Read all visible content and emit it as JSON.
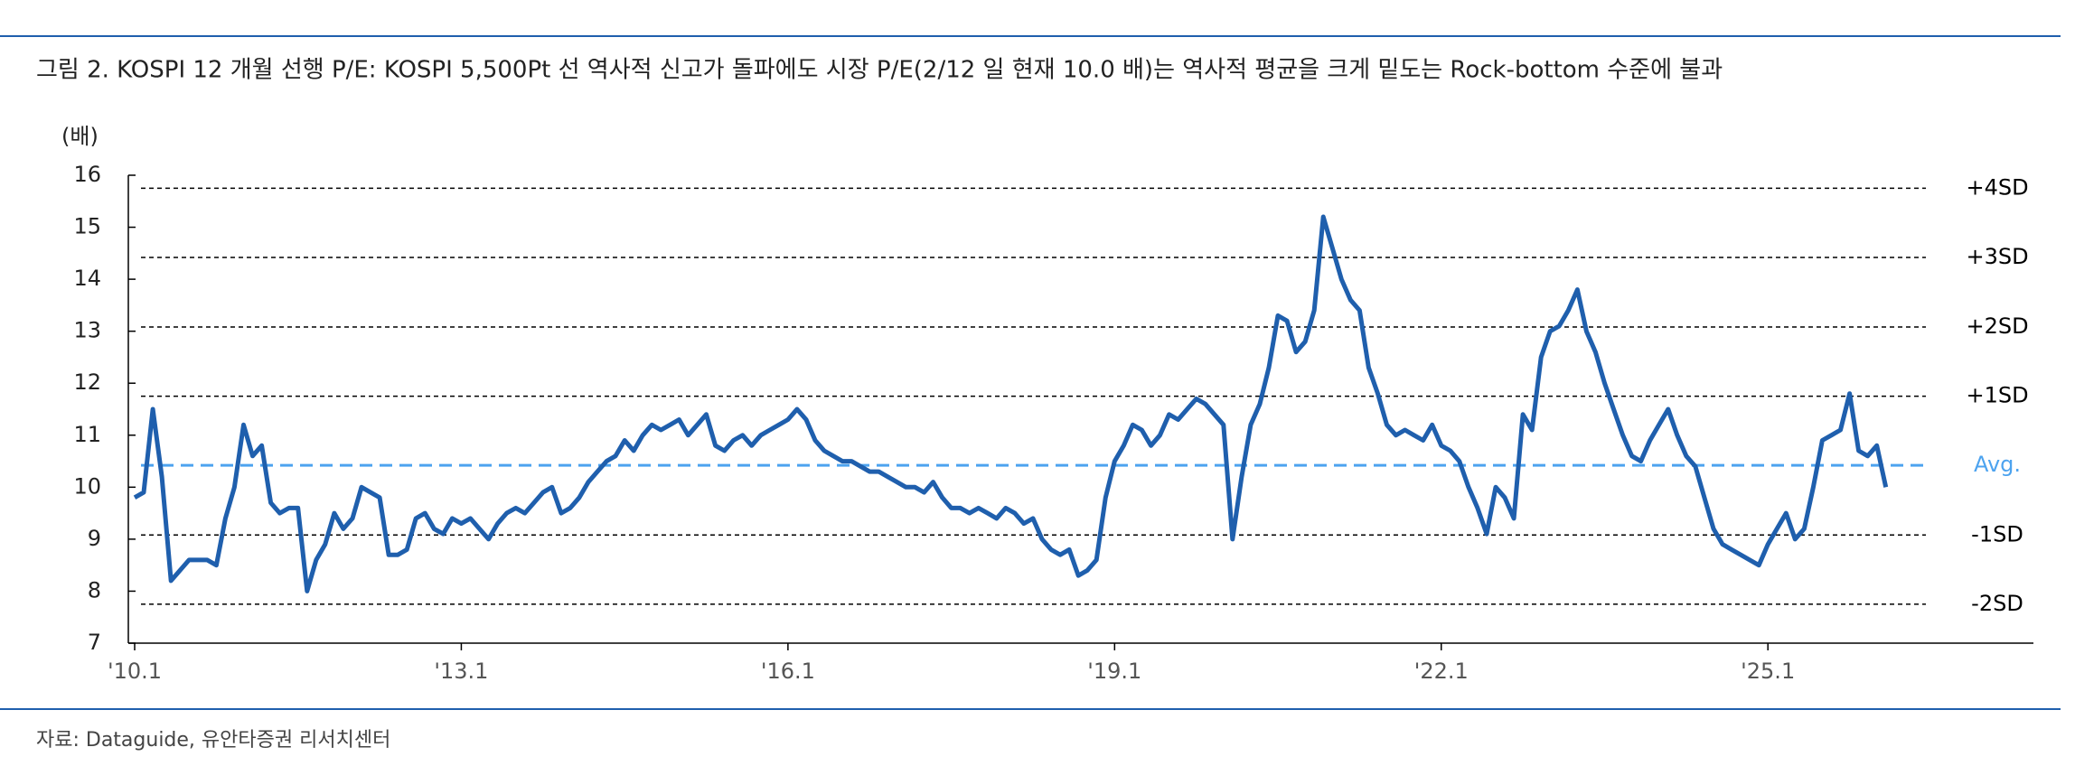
{
  "chart_data": {
    "type": "line",
    "title": "그림 2. KOSPI 12 개월 선행 P/E: KOSPI 5,500Pt 선 역사적 신고가 돌파에도 시장 P/E(2/12 일 현재 10.0 배)는 역사적 평균을 크게 밑도는 Rock-bottom 수준에 불과",
    "y_label": "(배)",
    "source": "자료: Dataguide, 유안타증권 리서치센터",
    "color": "#1f5fad",
    "categories": [
      "'10.1",
      null,
      null,
      null,
      null,
      null,
      null,
      null,
      null,
      null,
      null,
      null,
      null,
      null,
      null,
      null,
      null,
      null,
      null,
      null,
      null,
      null,
      null,
      null,
      null,
      null,
      null,
      null,
      null,
      null,
      null,
      null,
      null,
      null,
      null,
      null,
      "'13.1",
      null,
      null,
      null,
      null,
      null,
      null,
      null,
      null,
      null,
      null,
      null,
      null,
      null,
      null,
      null,
      null,
      null,
      null,
      null,
      null,
      null,
      null,
      null,
      null,
      null,
      null,
      null,
      null,
      null,
      null,
      null,
      null,
      null,
      null,
      null,
      "'16.1",
      null,
      null,
      null,
      null,
      null,
      null,
      null,
      null,
      null,
      null,
      null,
      null,
      null,
      null,
      null,
      null,
      null,
      null,
      null,
      null,
      null,
      null,
      null,
      null,
      null,
      null,
      null,
      null,
      null,
      null,
      null,
      null,
      null,
      null,
      null,
      "'19.1",
      null,
      null,
      null,
      null,
      null,
      null,
      null,
      null,
      null,
      null,
      null,
      null,
      null,
      null,
      null,
      null,
      null,
      null,
      null,
      null,
      null,
      null,
      null,
      null,
      null,
      null,
      null,
      null,
      null,
      null,
      null,
      null,
      null,
      null,
      null,
      "'22.1",
      null,
      null,
      null,
      null,
      null,
      null,
      null,
      null,
      null,
      null,
      null,
      null,
      null,
      null,
      null,
      null,
      null,
      null,
      null,
      null,
      null,
      null,
      null,
      null,
      null,
      null,
      null,
      null,
      null,
      null,
      null,
      null,
      null,
      null,
      null,
      "'25.1",
      null,
      null,
      null,
      null,
      null,
      null,
      null,
      null,
      null,
      null,
      null,
      null,
      null
    ],
    "values": [
      9.8,
      9.9,
      11.5,
      10.2,
      8.2,
      8.4,
      8.6,
      8.6,
      8.6,
      8.5,
      9.4,
      10.0,
      11.2,
      10.6,
      10.8,
      9.7,
      9.5,
      9.6,
      9.6,
      8.0,
      8.6,
      8.9,
      9.5,
      9.2,
      9.4,
      10.0,
      9.9,
      9.8,
      8.7,
      8.7,
      8.8,
      9.4,
      9.5,
      9.2,
      9.1,
      9.4,
      9.3,
      9.4,
      9.2,
      9.0,
      9.3,
      9.5,
      9.6,
      9.5,
      9.7,
      9.9,
      10.0,
      9.5,
      9.6,
      9.8,
      10.1,
      10.3,
      10.5,
      10.6,
      10.9,
      10.7,
      11.0,
      11.2,
      11.1,
      11.2,
      11.3,
      11.0,
      11.2,
      11.4,
      10.8,
      10.7,
      10.9,
      11.0,
      10.8,
      11.0,
      11.1,
      11.2,
      11.3,
      11.5,
      11.3,
      10.9,
      10.7,
      10.6,
      10.5,
      10.5,
      10.4,
      10.3,
      10.3,
      10.2,
      10.1,
      10.0,
      10.0,
      9.9,
      10.1,
      9.8,
      9.6,
      9.6,
      9.5,
      9.6,
      9.5,
      9.4,
      9.6,
      9.5,
      9.3,
      9.4,
      9.0,
      8.8,
      8.7,
      8.8,
      8.3,
      8.4,
      8.6,
      9.8,
      10.5,
      10.8,
      11.2,
      11.1,
      10.8,
      11.0,
      11.4,
      11.3,
      11.5,
      11.7,
      11.6,
      11.4,
      11.2,
      9.0,
      10.2,
      11.2,
      11.6,
      12.3,
      13.3,
      13.2,
      12.6,
      12.8,
      13.4,
      15.2,
      14.6,
      14.0,
      13.6,
      13.4,
      12.3,
      11.8,
      11.2,
      11.0,
      11.1,
      11.0,
      10.9,
      11.2,
      10.8,
      10.7,
      10.5,
      10.0,
      9.6,
      9.1,
      10.0,
      9.8,
      9.4,
      11.4,
      11.1,
      12.5,
      13.0,
      13.1,
      13.4,
      13.8,
      13.0,
      12.6,
      12.0,
      11.5,
      11.0,
      10.6,
      10.5,
      10.9,
      11.2,
      11.5,
      11.0,
      10.6,
      10.4,
      9.8,
      9.2,
      8.9,
      8.8,
      8.7,
      8.6,
      8.5,
      8.9,
      9.2,
      9.5,
      9.0,
      9.2,
      10.0,
      10.9,
      11.0,
      11.1,
      11.8,
      10.7,
      10.6,
      10.8,
      10.0
    ],
    "ylim": [
      7,
      16
    ],
    "yticks": [
      7,
      8,
      9,
      10,
      11,
      12,
      13,
      14,
      15,
      16
    ],
    "ref_lines": [
      {
        "label": "+4SD",
        "value": 15.75,
        "color": "#000000"
      },
      {
        "label": "+3SD",
        "value": 14.42,
        "color": "#000000"
      },
      {
        "label": "+2SD",
        "value": 13.08,
        "color": "#000000"
      },
      {
        "label": "+1SD",
        "value": 11.75,
        "color": "#000000"
      },
      {
        "label": "Avg.",
        "value": 10.42,
        "color": "#4da3ef"
      },
      {
        "label": "-1SD",
        "value": 9.08,
        "color": "#000000"
      },
      {
        "label": "-2SD",
        "value": 7.75,
        "color": "#000000"
      }
    ]
  }
}
